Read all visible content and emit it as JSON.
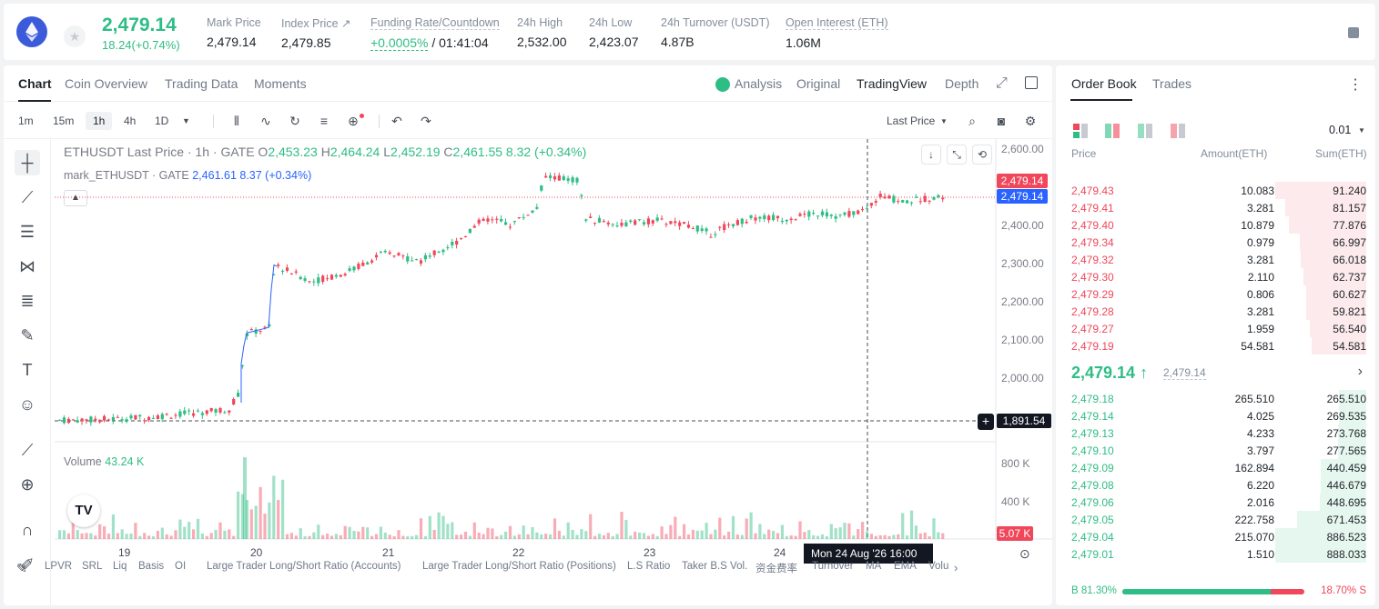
{
  "header": {
    "last_price": "2,479.14",
    "change": "18.24(+0.74%)",
    "stats": [
      {
        "label": "Mark Price",
        "value": "2,479.14"
      },
      {
        "label": "Index Price ↗",
        "value": "2,479.85"
      },
      {
        "label": "Funding Rate/Countdown",
        "value_green": "+0.0005%",
        "value": " / 01:41:04"
      },
      {
        "label": "24h High",
        "value": "2,532.00"
      },
      {
        "label": "24h Low",
        "value": "2,423.07"
      },
      {
        "label": "24h Turnover (USDT)",
        "value": "4.87B"
      },
      {
        "label": "Open Interest (ETH)",
        "value": "1.06M"
      }
    ]
  },
  "tabs": [
    "Chart",
    "Coin Overview",
    "Trading Data",
    "Moments"
  ],
  "views": [
    "Analysis",
    "Original",
    "TradingView",
    "Depth"
  ],
  "intervals": [
    "1m",
    "15m",
    "1h",
    "4h",
    "1D"
  ],
  "price_type": "Last Price",
  "legend": {
    "symbol": "ETHUSDT Last Price · 1h · GATE",
    "ok": "O",
    "ov": "2,453.23",
    "hk": "H",
    "hv": "2,464.24",
    "lk": "L",
    "lv": "2,452.19",
    "ck": "C",
    "cv": "2,461.55",
    "chg": "8.32 (+0.34%)",
    "mark_name": "mark_ETHUSDT · GATE",
    "mark_vals": "2,461.61  8.37 (+0.34%)"
  },
  "volume": {
    "label": "Volume",
    "value": "43.24 K"
  },
  "price_axis": [
    "2,600.00",
    "2,500.00",
    "2,400.00",
    "2,300.00",
    "2,200.00",
    "2,100.00",
    "2,000.00"
  ],
  "volume_axis": [
    "800 K",
    "400 K"
  ],
  "tags": {
    "ask": "2,479.14",
    "mark": "2,479.14",
    "cross": "1,891.54",
    "vol": "5.07 K"
  },
  "x_labels": [
    "19",
    "20",
    "21",
    "22",
    "23",
    "24"
  ],
  "hover_time": "Mon 24 Aug '26   16:00",
  "indicators": [
    "LPVR",
    "SRL",
    "Liq",
    "Basis",
    "OI",
    "Large Trader Long/Short Ratio (Accounts)",
    "Large Trader Long/Short Ratio (Positions)",
    "L.S Ratio",
    "Taker B.S Vol.",
    "资金费率",
    "Turnover",
    "MA",
    "EMA",
    "Volu"
  ],
  "colors": {
    "up": "#2ebd85",
    "down": "#f0475a",
    "mark": "#2962ff"
  },
  "orderbook": {
    "tabs": [
      "Order Book",
      "Trades"
    ],
    "precision": "0.01",
    "headers": [
      "Price",
      "Amount(ETH)",
      "Sum(ETH)"
    ],
    "asks": [
      {
        "p": "2,479.43",
        "a": "10.083",
        "s": "91.240"
      },
      {
        "p": "2,479.41",
        "a": "3.281",
        "s": "81.157"
      },
      {
        "p": "2,479.40",
        "a": "10.879",
        "s": "77.876"
      },
      {
        "p": "2,479.34",
        "a": "0.979",
        "s": "66.997"
      },
      {
        "p": "2,479.32",
        "a": "3.281",
        "s": "66.018"
      },
      {
        "p": "2,479.30",
        "a": "2.110",
        "s": "62.737"
      },
      {
        "p": "2,479.29",
        "a": "0.806",
        "s": "60.627"
      },
      {
        "p": "2,479.28",
        "a": "3.281",
        "s": "59.821"
      },
      {
        "p": "2,479.27",
        "a": "1.959",
        "s": "56.540"
      },
      {
        "p": "2,479.19",
        "a": "54.581",
        "s": "54.581"
      }
    ],
    "mid": "2,479.14 ↑",
    "mid_index": "2,479.14",
    "bids": [
      {
        "p": "2,479.18",
        "a": "265.510",
        "s": "265.510"
      },
      {
        "p": "2,479.14",
        "a": "4.025",
        "s": "269.535"
      },
      {
        "p": "2,479.13",
        "a": "4.233",
        "s": "273.768"
      },
      {
        "p": "2,479.10",
        "a": "3.797",
        "s": "277.565"
      },
      {
        "p": "2,479.09",
        "a": "162.894",
        "s": "440.459"
      },
      {
        "p": "2,479.08",
        "a": "6.220",
        "s": "446.679"
      },
      {
        "p": "2,479.06",
        "a": "2.016",
        "s": "448.695"
      },
      {
        "p": "2,479.05",
        "a": "222.758",
        "s": "671.453"
      },
      {
        "p": "2,479.04",
        "a": "215.070",
        "s": "886.523"
      },
      {
        "p": "2,479.01",
        "a": "1.510",
        "s": "888.033"
      }
    ],
    "buy_ratio": "B 81.30%",
    "sell_ratio": "18.70% S",
    "buy_fraction": 0.813
  }
}
